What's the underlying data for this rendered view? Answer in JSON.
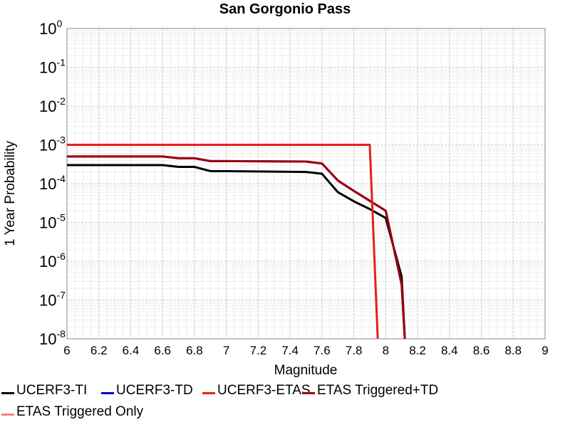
{
  "chart_data": {
    "type": "line",
    "title": "San Gorgonio Pass",
    "xlabel": "Magnitude",
    "ylabel": "1 Year Probability",
    "xlim": [
      6,
      9
    ],
    "ylim": [
      1e-08,
      1
    ],
    "yscale": "log",
    "grid": true,
    "legend_position": "bottom",
    "x_ticks": [
      "6",
      "6.2",
      "6.4",
      "6.6",
      "6.8",
      "7",
      "7.2",
      "7.4",
      "7.6",
      "7.8",
      "8",
      "8.2",
      "8.4",
      "8.6",
      "8.8",
      "9"
    ],
    "y_ticks": [
      {
        "base": "10",
        "exp": "0"
      },
      {
        "base": "10",
        "exp": "-1"
      },
      {
        "base": "10",
        "exp": "-2"
      },
      {
        "base": "10",
        "exp": "-3"
      },
      {
        "base": "10",
        "exp": "-4"
      },
      {
        "base": "10",
        "exp": "-5"
      },
      {
        "base": "10",
        "exp": "-6"
      },
      {
        "base": "10",
        "exp": "-7"
      },
      {
        "base": "10",
        "exp": "-8"
      }
    ],
    "series": [
      {
        "name": "UCERF3-TI",
        "color": "#000000",
        "x": [
          6.0,
          6.6,
          6.7,
          6.8,
          6.9,
          7.0,
          7.5,
          7.6,
          7.7,
          7.8,
          7.9,
          8.0,
          8.1,
          8.12
        ],
        "y": [
          0.0003,
          0.0003,
          0.00027,
          0.00027,
          0.00021,
          0.00021,
          0.0002,
          0.00018,
          6e-05,
          3.5e-05,
          2.2e-05,
          1.3e-05,
          4e-07,
          1e-08
        ]
      },
      {
        "name": "UCERF3-TD",
        "color": "#0000cc",
        "x": [
          6.0,
          6.6,
          6.7,
          6.8,
          6.9,
          7.0,
          7.5,
          7.6,
          7.7,
          7.8,
          7.9,
          8.0,
          8.1,
          8.12
        ],
        "y": [
          0.0005,
          0.0005,
          0.00045,
          0.00045,
          0.00038,
          0.00038,
          0.00037,
          0.00033,
          0.00012,
          6.5e-05,
          3.6e-05,
          2e-05,
          2.5e-07,
          1e-08
        ]
      },
      {
        "name": "UCERF3-ETAS",
        "color": "#e81d1d",
        "x": [
          6.0,
          7.9,
          7.95
        ],
        "y": [
          0.001,
          0.001,
          1e-08
        ]
      },
      {
        "name": "ETAS Triggered+TD",
        "color": "#a00000",
        "x": [
          6.0,
          6.6,
          6.7,
          6.8,
          6.9,
          7.0,
          7.5,
          7.6,
          7.7,
          7.8,
          7.9,
          8.0,
          8.1,
          8.12
        ],
        "y": [
          0.0005,
          0.0005,
          0.00045,
          0.00045,
          0.00038,
          0.00038,
          0.00037,
          0.00033,
          0.00012,
          6.5e-05,
          3.6e-05,
          2e-05,
          2.5e-07,
          1e-08
        ]
      },
      {
        "name": "ETAS Triggered Only",
        "color": "#f08080",
        "x": [],
        "y": []
      }
    ]
  }
}
